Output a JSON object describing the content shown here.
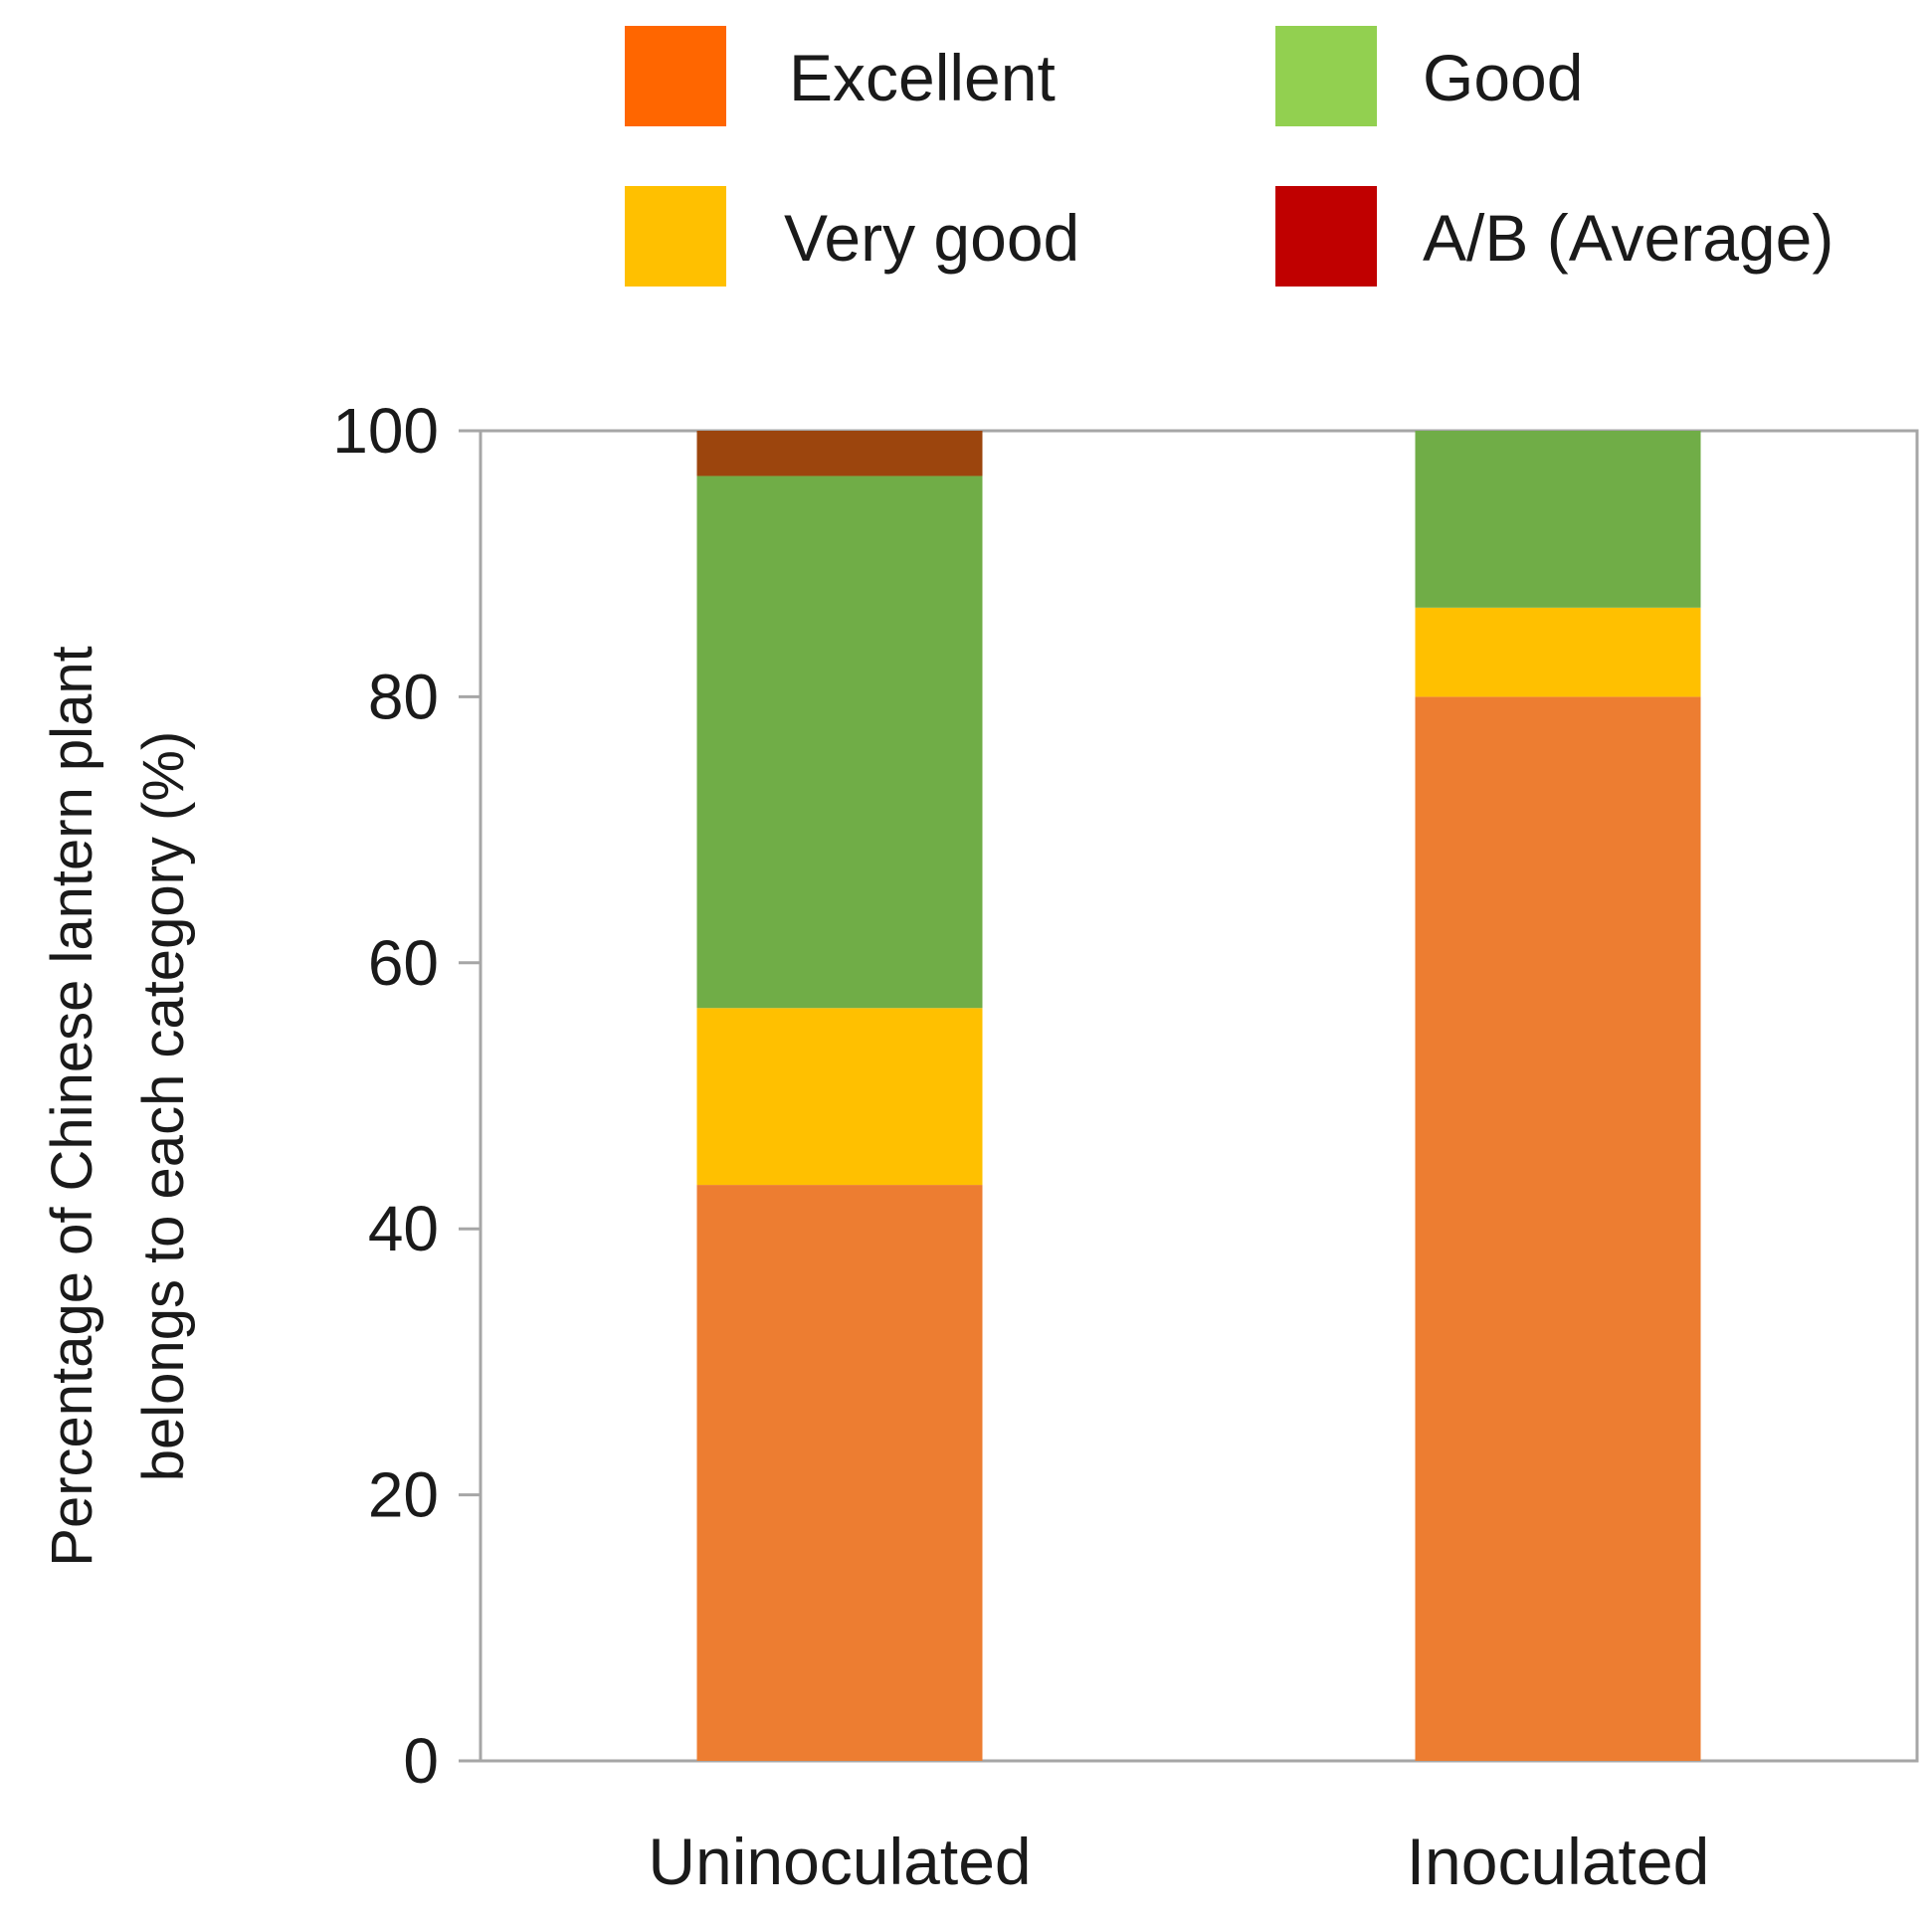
{
  "chart_data": {
    "type": "bar",
    "stacked": true,
    "title": "",
    "xlabel": "",
    "ylabel_lines": [
      "Percentage of Chinese lantern plant",
      "belongs to each category  (%)"
    ],
    "ylim": [
      0,
      100
    ],
    "yticks": [
      0,
      20,
      40,
      60,
      80,
      100
    ],
    "grid": false,
    "legend_position": "top",
    "categories": [
      "Uninoculated",
      "Inoculated"
    ],
    "series": [
      {
        "name": "Excellent",
        "legend_color": "#FF6600",
        "bar_color": "#ED7D31",
        "values": [
          43.3,
          80.0
        ]
      },
      {
        "name": "Very good",
        "legend_color": "#FFC000",
        "bar_color": "#FFC000",
        "values": [
          13.3,
          6.7
        ]
      },
      {
        "name": "Good",
        "legend_color": "#92D050",
        "bar_color": "#70AD47",
        "values": [
          40.0,
          13.3
        ]
      },
      {
        "name": "A/B (Average)",
        "legend_color": "#C00000",
        "bar_color": "#9C450D",
        "values": [
          3.4,
          0.0
        ]
      }
    ]
  }
}
